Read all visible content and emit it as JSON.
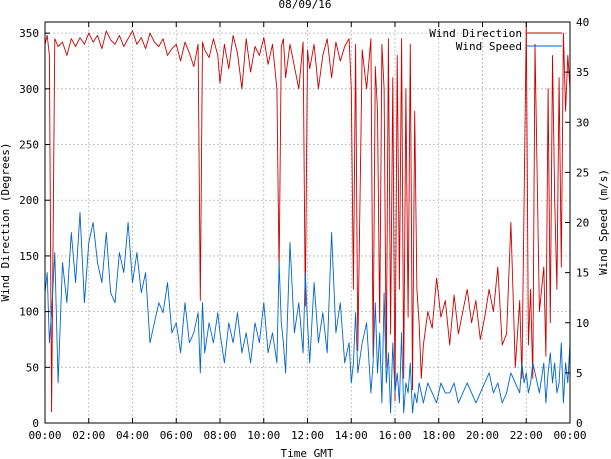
{
  "chart_data": {
    "type": "line",
    "title": "08/09/16",
    "xlabel": "Time GMT",
    "ylabel_left": "Wind Direction (Degrees)",
    "ylabel_right": "Wind Speed (m/s)",
    "x_unit": "hours GMT",
    "xlim": [
      0,
      24
    ],
    "ylim_left": [
      0,
      360
    ],
    "ylim_right": [
      0,
      40
    ],
    "grid": true,
    "legend_position": "top-right",
    "x_ticks": [
      {
        "value": 0,
        "label": "00:00"
      },
      {
        "value": 2,
        "label": "02:00"
      },
      {
        "value": 4,
        "label": "04:00"
      },
      {
        "value": 6,
        "label": "06:00"
      },
      {
        "value": 8,
        "label": "08:00"
      },
      {
        "value": 10,
        "label": "10:00"
      },
      {
        "value": 12,
        "label": "12:00"
      },
      {
        "value": 14,
        "label": "14:00"
      },
      {
        "value": 16,
        "label": "16:00"
      },
      {
        "value": 18,
        "label": "18:00"
      },
      {
        "value": 20,
        "label": "20:00"
      },
      {
        "value": 22,
        "label": "22:00"
      },
      {
        "value": 24,
        "label": "00:00"
      }
    ],
    "y_ticks_left": [
      "0",
      "50",
      "100",
      "150",
      "200",
      "250",
      "300",
      "350"
    ],
    "y_ticks_right": [
      "0",
      "5",
      "10",
      "15",
      "20",
      "25",
      "30",
      "35",
      "40"
    ],
    "series": [
      {
        "name": "Wind Direction",
        "axis": "left",
        "color": "#cc0000",
        "x": [
          0.0,
          0.1,
          0.2,
          0.3,
          0.45,
          0.6,
          0.8,
          1.0,
          1.2,
          1.4,
          1.6,
          1.8,
          2.0,
          2.2,
          2.4,
          2.6,
          2.8,
          3.0,
          3.2,
          3.4,
          3.6,
          3.8,
          4.0,
          4.2,
          4.4,
          4.6,
          4.8,
          5.0,
          5.2,
          5.4,
          5.6,
          5.8,
          6.0,
          6.2,
          6.4,
          6.6,
          6.8,
          7.0,
          7.1,
          7.2,
          7.3,
          7.5,
          7.7,
          7.9,
          8.0,
          8.2,
          8.4,
          8.6,
          8.8,
          9.0,
          9.2,
          9.4,
          9.6,
          9.8,
          10.0,
          10.2,
          10.4,
          10.6,
          10.7,
          10.8,
          10.9,
          11.0,
          11.2,
          11.4,
          11.6,
          11.8,
          11.9,
          12.0,
          12.1,
          12.3,
          12.5,
          12.7,
          12.9,
          13.1,
          13.3,
          13.5,
          13.7,
          13.9,
          14.0,
          14.1,
          14.2,
          14.3,
          14.5,
          14.7,
          14.9,
          15.0,
          15.1,
          15.2,
          15.3,
          15.4,
          15.5,
          15.6,
          15.7,
          15.8,
          15.9,
          16.0,
          16.1,
          16.2,
          16.3,
          16.4,
          16.5,
          16.6,
          16.7,
          16.8,
          16.9,
          17.0,
          17.1,
          17.2,
          17.3,
          17.5,
          17.7,
          17.9,
          18.1,
          18.3,
          18.5,
          18.7,
          18.9,
          19.1,
          19.3,
          19.5,
          19.7,
          19.9,
          20.1,
          20.3,
          20.5,
          20.7,
          20.9,
          21.1,
          21.3,
          21.5,
          21.7,
          21.8,
          21.9,
          22.0,
          22.1,
          22.2,
          22.3,
          22.4,
          22.6,
          22.8,
          22.9,
          23.0,
          23.1,
          23.2,
          23.3,
          23.4,
          23.5,
          23.6,
          23.7,
          23.8,
          23.9,
          24.0
        ],
        "values": [
          340,
          348,
          330,
          10,
          345,
          338,
          342,
          330,
          345,
          338,
          346,
          340,
          350,
          342,
          348,
          336,
          352,
          344,
          340,
          348,
          338,
          345,
          352,
          340,
          346,
          336,
          350,
          342,
          338,
          345,
          330,
          336,
          340,
          325,
          342,
          332,
          320,
          340,
          110,
          342,
          335,
          328,
          345,
          330,
          305,
          340,
          318,
          348,
          332,
          300,
          345,
          315,
          338,
          330,
          346,
          322,
          340,
          300,
          135,
          338,
          345,
          310,
          340,
          320,
          300,
          342,
          105,
          335,
          318,
          340,
          300,
          330,
          345,
          310,
          342,
          325,
          338,
          345,
          300,
          120,
          340,
          65,
          335,
          300,
          345,
          60,
          320,
          280,
          90,
          340,
          300,
          50,
          345,
          80,
          310,
          20,
          330,
          120,
          345,
          40,
          300,
          95,
          340,
          30,
          280,
          120,
          90,
          40,
          70,
          100,
          85,
          130,
          95,
          110,
          70,
          115,
          80,
          100,
          120,
          90,
          110,
          75,
          95,
          120,
          100,
          140,
          70,
          80,
          180,
          50,
          110,
          40,
          200,
          370,
          70,
          120,
          40,
          340,
          100,
          140,
          60,
          300,
          90,
          330,
          200,
          120,
          310,
          140,
          350,
          280,
          330,
          300
        ],
        "values_right_axis_equivalent": null
      },
      {
        "name": "Wind Speed",
        "axis": "right",
        "color": "#0066cc",
        "x": [
          0.0,
          0.1,
          0.2,
          0.3,
          0.45,
          0.6,
          0.8,
          1.0,
          1.2,
          1.4,
          1.6,
          1.8,
          2.0,
          2.2,
          2.4,
          2.6,
          2.8,
          3.0,
          3.2,
          3.4,
          3.6,
          3.8,
          4.0,
          4.2,
          4.4,
          4.6,
          4.8,
          5.0,
          5.2,
          5.4,
          5.6,
          5.8,
          6.0,
          6.2,
          6.4,
          6.6,
          6.8,
          7.0,
          7.1,
          7.2,
          7.3,
          7.5,
          7.7,
          7.9,
          8.0,
          8.2,
          8.4,
          8.6,
          8.8,
          9.0,
          9.2,
          9.4,
          9.6,
          9.8,
          10.0,
          10.2,
          10.4,
          10.6,
          10.7,
          10.8,
          10.9,
          11.0,
          11.2,
          11.4,
          11.6,
          11.8,
          11.9,
          12.0,
          12.1,
          12.3,
          12.5,
          12.7,
          12.9,
          13.1,
          13.3,
          13.5,
          13.7,
          13.9,
          14.0,
          14.1,
          14.2,
          14.3,
          14.5,
          14.7,
          14.9,
          15.0,
          15.1,
          15.2,
          15.3,
          15.4,
          15.5,
          15.6,
          15.7,
          15.8,
          15.9,
          16.0,
          16.1,
          16.2,
          16.3,
          16.4,
          16.5,
          16.6,
          16.7,
          16.8,
          16.9,
          17.0,
          17.1,
          17.2,
          17.3,
          17.5,
          17.7,
          17.9,
          18.1,
          18.3,
          18.5,
          18.7,
          18.9,
          19.1,
          19.3,
          19.5,
          19.7,
          19.9,
          20.1,
          20.3,
          20.5,
          20.7,
          20.9,
          21.1,
          21.3,
          21.5,
          21.7,
          21.8,
          21.9,
          22.0,
          22.1,
          22.2,
          22.3,
          22.4,
          22.6,
          22.8,
          22.9,
          23.0,
          23.1,
          23.2,
          23.3,
          23.4,
          23.5,
          23.6,
          23.7,
          23.8,
          23.9,
          24.0
        ],
        "values": [
          13,
          15,
          8,
          11,
          17,
          4,
          16,
          12,
          19,
          14,
          21,
          12,
          18,
          20,
          16,
          14,
          19,
          13,
          12,
          17,
          15,
          20,
          14,
          17,
          13,
          15,
          8,
          10,
          12,
          11,
          14,
          9,
          10,
          7,
          12,
          8,
          9,
          11,
          5,
          12,
          7,
          10,
          8,
          11,
          9,
          6,
          10,
          8,
          11,
          7,
          9,
          6,
          10,
          8,
          12,
          7,
          9,
          6,
          16,
          10,
          8,
          5,
          18,
          9,
          12,
          7,
          15,
          10,
          6,
          14,
          8,
          11,
          7,
          19,
          9,
          12,
          6,
          8,
          4,
          6,
          11,
          5,
          8,
          10,
          3,
          6,
          12,
          5,
          9,
          2,
          13,
          4,
          7,
          1,
          8,
          3,
          5,
          2,
          9,
          1,
          4,
          3,
          6,
          1,
          3,
          2,
          4,
          3,
          2,
          4,
          3,
          2,
          4,
          3,
          3,
          4,
          2,
          3,
          4,
          3,
          2,
          3,
          4,
          5,
          3,
          4,
          2,
          3,
          5,
          4,
          3,
          6,
          4,
          5,
          3,
          4,
          6,
          5,
          3,
          6,
          2,
          5,
          7,
          4,
          6,
          3,
          4,
          8,
          2,
          6,
          4,
          8
        ]
      }
    ]
  }
}
